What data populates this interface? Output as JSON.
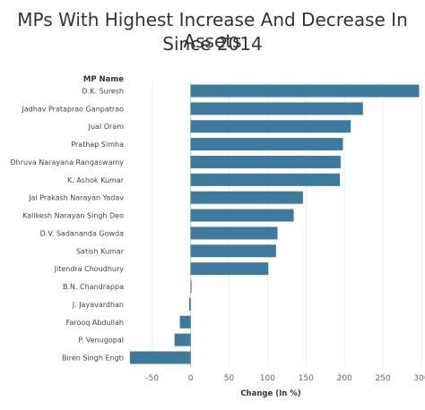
{
  "title_lines": [
    "MPs With Highest Increase And Decrease In Assets",
    "Since 2014"
  ],
  "chart_data": {
    "type": "bar",
    "orientation": "horizontal",
    "title": "MPs With Highest Increase And Decrease In Assets Since 2014",
    "category_axis_header": "MP Name",
    "xlabel": "Change (In %)",
    "ylabel": "",
    "xlim": [
      -80,
      300
    ],
    "xticks": [
      -50,
      0,
      50,
      100,
      150,
      200,
      250,
      300
    ],
    "grid": true,
    "bar_color": "#3E7A9E",
    "categories": [
      "D.K. Suresh",
      "Jadhav Prataprao Ganpatrao",
      "Jual Oram",
      "Prathap Simha",
      "Dhruva Narayana Rangaswamy",
      "K. Ashok Kumar",
      "Jai Prakash Narayan Yadav",
      "Kalikesh Narayan Singh Deo",
      "D.V. Sadananda Gowda",
      "Satish Kumar",
      "Jitendra Choudhury",
      "B.N. Chandrappa",
      "J. Jayavardhan",
      "Farooq Abdullah",
      "P. Venugopal",
      "Biren Singh Engti"
    ],
    "values": [
      297,
      224,
      208,
      198,
      195,
      194,
      146,
      134,
      113,
      111,
      101,
      1,
      -2,
      -14,
      -21,
      -79
    ]
  }
}
